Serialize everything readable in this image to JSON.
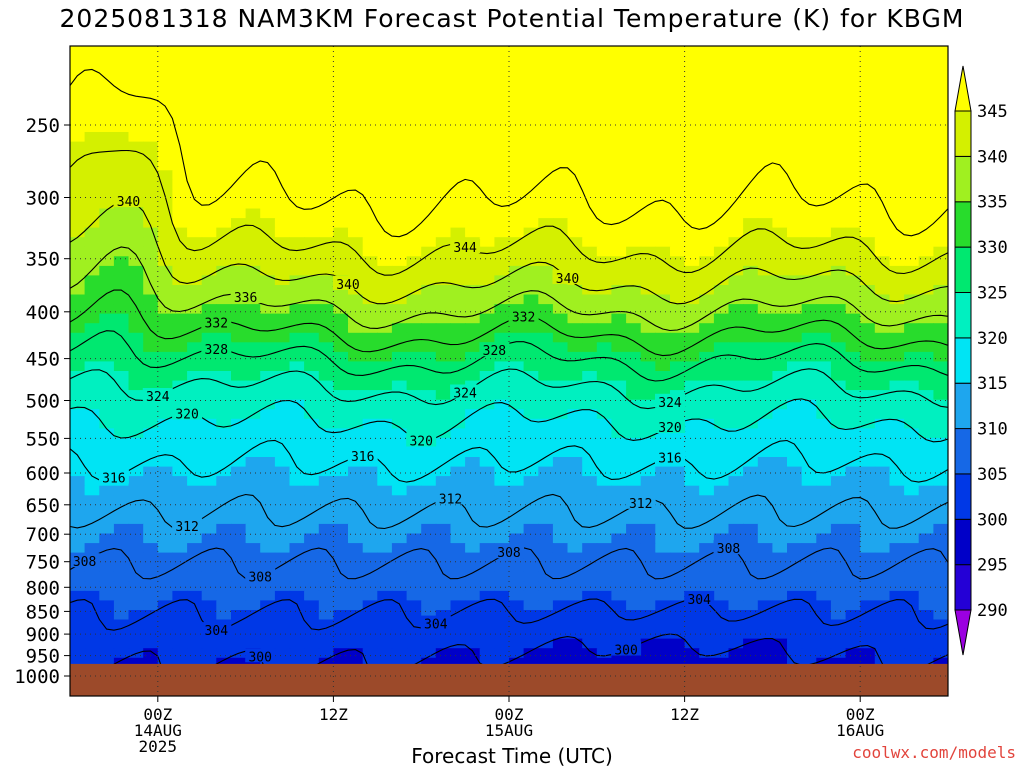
{
  "title": "2025081318 NAM3KM Forecast Potential Temperature (K) for KBGM",
  "credit": "coolwx.com/models",
  "chart_data": {
    "type": "heatmap",
    "title": "2025081318 NAM3KM Forecast Potential Temperature (K) for KBGM",
    "xlabel": "Forecast Time (UTC)",
    "ylabel": "",
    "x_ticks": [
      {
        "label": [
          "00Z",
          "14AUG",
          "2025"
        ],
        "hours": 6
      },
      {
        "label": [
          "12Z"
        ],
        "hours": 18
      },
      {
        "label": [
          "00Z",
          "15AUG"
        ],
        "hours": 30
      },
      {
        "label": [
          "12Z"
        ],
        "hours": 42
      },
      {
        "label": [
          "00Z",
          "16AUG"
        ],
        "hours": 54
      }
    ],
    "xlim_hours": [
      0,
      60
    ],
    "y_ticks": [
      250,
      300,
      350,
      400,
      450,
      500,
      550,
      600,
      650,
      700,
      750,
      800,
      850,
      900,
      950,
      1000
    ],
    "ylim_hPa": [
      200,
      1050
    ],
    "y_scale": "log-pressure",
    "ground_level_hPa": 970,
    "colorbar": {
      "levels": [
        290,
        295,
        300,
        305,
        310,
        315,
        320,
        325,
        330,
        335,
        340,
        345
      ],
      "colors": [
        "#9b00e0",
        "#2400d6",
        "#0000c8",
        "#0038e6",
        "#1668e6",
        "#1ea6ee",
        "#00e4f4",
        "#00f0c0",
        "#00e870",
        "#28dc2c",
        "#a0f020",
        "#d4f000",
        "#ffff00"
      ]
    },
    "contour_interval": 4,
    "contour_labels": [
      "344",
      "340",
      "340",
      "340",
      "336",
      "332",
      "332",
      "328",
      "328",
      "324",
      "324",
      "324",
      "320",
      "320",
      "320",
      "316",
      "316",
      "316",
      "312",
      "312",
      "312",
      "308",
      "308",
      "308",
      "308",
      "304",
      "304",
      "304",
      "300",
      "300"
    ],
    "colors": {
      "ground": "#9c4a2a",
      "grid": "#333333"
    }
  }
}
